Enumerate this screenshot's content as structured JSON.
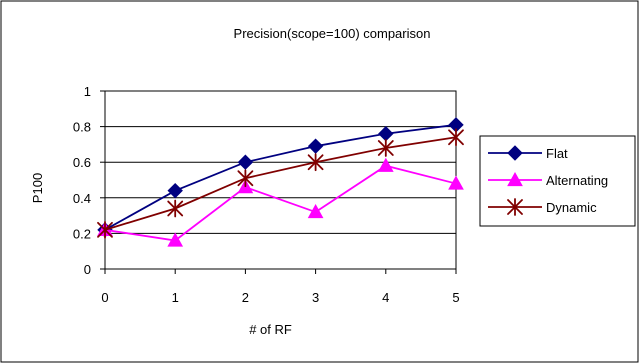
{
  "chart_data": {
    "type": "line",
    "title": "Precision(scope=100) comparison",
    "xlabel": "# of RF",
    "ylabel": "P100",
    "categories": [
      "0",
      "1",
      "2",
      "3",
      "4",
      "5"
    ],
    "ylim": [
      0,
      1
    ],
    "yticks": [
      "0",
      "0.2",
      "0.4",
      "0.6",
      "0.8",
      "1"
    ],
    "grid": "horizontal",
    "legend_position": "right",
    "series": [
      {
        "name": "Flat",
        "values": [
          0.22,
          0.44,
          0.6,
          0.69,
          0.76,
          0.81
        ],
        "color": "#000080",
        "marker": "diamond"
      },
      {
        "name": "Alternating",
        "values": [
          0.22,
          0.16,
          0.46,
          0.32,
          0.58,
          0.48
        ],
        "color": "#ff00ff",
        "marker": "triangle"
      },
      {
        "name": "Dynamic",
        "values": [
          0.22,
          0.34,
          0.51,
          0.6,
          0.68,
          0.74
        ],
        "color": "#800000",
        "marker": "asterisk"
      }
    ]
  }
}
